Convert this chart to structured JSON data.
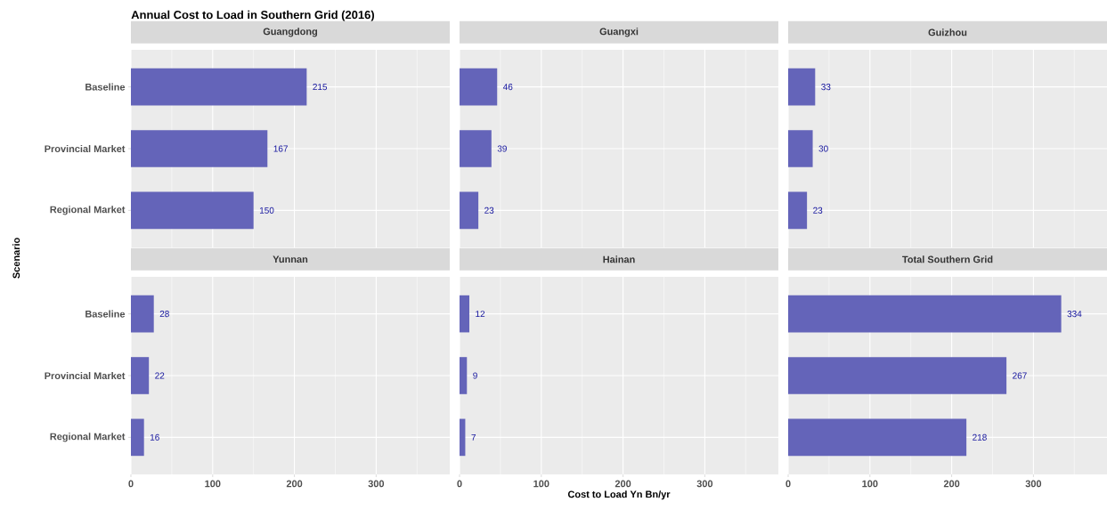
{
  "chart_data": [
    {
      "type": "bar",
      "orientation": "horizontal",
      "title": "Guangdong",
      "annotations": [
        "Annual Cost to Load in Southern Grid (2016)"
      ],
      "ylabel": "Scenario",
      "categories": [
        "Baseline",
        "Provincial Market",
        "Regional Market"
      ],
      "values": [
        215,
        167,
        150
      ],
      "color": "#6464b9",
      "data_labels": true,
      "xlim": [
        0,
        390
      ],
      "xticks": [
        0,
        {
          "value": 50,
          "label": null
        },
        100,
        {
          "value": 150,
          "label": null
        },
        200,
        {
          "value": 250,
          "label": null
        },
        300,
        {
          "value": 350,
          "label": null
        }
      ],
      "grid": true,
      "tick_labels": "y"
    },
    {
      "type": "bar",
      "orientation": "horizontal",
      "title": "Guangxi",
      "categories": [
        null,
        null,
        null
      ],
      "values": [
        46,
        39,
        23
      ],
      "color": "#6464b9",
      "data_labels": true,
      "xlim": [
        0,
        390
      ],
      "xticks": [
        0,
        {
          "value": 50,
          "label": null
        },
        100,
        {
          "value": 150,
          "label": null
        },
        200,
        {
          "value": 250,
          "label": null
        },
        300,
        {
          "value": 350,
          "label": null
        }
      ],
      "grid": true,
      "tick_labels": false
    },
    {
      "type": "bar",
      "orientation": "horizontal",
      "title": "Guizhou",
      "categories": [
        null,
        null,
        null
      ],
      "values": [
        33,
        30,
        23
      ],
      "color": "#6464b9",
      "data_labels": true,
      "xlim": [
        0,
        390
      ],
      "xticks": [
        0,
        {
          "value": 50,
          "label": null
        },
        100,
        {
          "value": 150,
          "label": null
        },
        200,
        {
          "value": 250,
          "label": null
        },
        300,
        {
          "value": 350,
          "label": null
        }
      ],
      "grid": true,
      "tick_labels": false
    },
    {
      "type": "bar",
      "orientation": "horizontal",
      "title": "Yunnan",
      "categories": [
        "Baseline",
        "Provincial Market",
        "Regional Market"
      ],
      "values": [
        28,
        22,
        16
      ],
      "color": "#6464b9",
      "data_labels": true,
      "xlim": [
        0,
        390
      ],
      "xticks": [
        0,
        {
          "value": 50,
          "label": null
        },
        100,
        {
          "value": 150,
          "label": null
        },
        200,
        {
          "value": 250,
          "label": null
        },
        300,
        {
          "value": 350,
          "label": null
        }
      ],
      "grid": true
    },
    {
      "type": "bar",
      "orientation": "horizontal",
      "title": "Hainan",
      "xlabel": "Cost to Load Yn Bn/yr",
      "categories": [
        null,
        null,
        null
      ],
      "values": [
        12,
        9,
        7
      ],
      "color": "#6464b9",
      "data_labels": true,
      "xlim": [
        0,
        390
      ],
      "xticks": [
        0,
        {
          "value": 50,
          "label": null
        },
        100,
        {
          "value": 150,
          "label": null
        },
        200,
        {
          "value": 250,
          "label": null
        },
        300,
        {
          "value": 350,
          "label": null
        }
      ],
      "grid": true,
      "tick_labels": "x"
    },
    {
      "type": "bar",
      "orientation": "horizontal",
      "title": "Total Southern Grid",
      "categories": [
        null,
        null,
        null
      ],
      "values": [
        334,
        267,
        218
      ],
      "color": "#6464b9",
      "data_labels": true,
      "xlim": [
        0,
        390
      ],
      "xticks": [
        0,
        {
          "value": 50,
          "label": null
        },
        100,
        {
          "value": 150,
          "label": null
        },
        200,
        {
          "value": 250,
          "label": null
        },
        300,
        {
          "value": 350,
          "label": null
        }
      ],
      "grid": true,
      "tick_labels": "x"
    }
  ]
}
